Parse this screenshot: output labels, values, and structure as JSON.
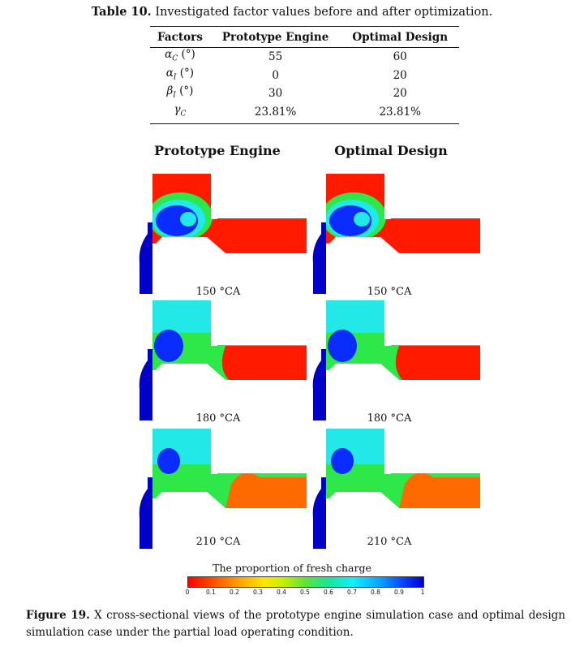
{
  "table": {
    "caption_label": "Table 10.",
    "caption_text": " Investigated factor values before and after optimization.",
    "headers": [
      "Factors",
      "Prototype Engine",
      "Optimal Design"
    ],
    "rows": [
      {
        "factor_sym": "α",
        "factor_sub": "C",
        "factor_unit": " (°)",
        "prototype": "55",
        "optimal": "60"
      },
      {
        "factor_sym": "α",
        "factor_sub": "I",
        "factor_unit": " (°)",
        "prototype": "0",
        "optimal": "20"
      },
      {
        "factor_sym": "β",
        "factor_sub": "I",
        "factor_unit": " (°)",
        "prototype": "30",
        "optimal": "20"
      },
      {
        "factor_sym": "γ",
        "factor_sub": "C",
        "factor_unit": "",
        "prototype": "23.81%",
        "optimal": "23.81%"
      }
    ]
  },
  "figure": {
    "column_titles": [
      "Prototype Engine",
      "Optimal Design"
    ],
    "crank_angles": [
      "150 °CA",
      "180 °CA",
      "210 °CA"
    ],
    "colorbar_title": "The proportion of fresh charge",
    "colorbar_ticks": [
      "0",
      "0.1",
      "0.2",
      "0.3",
      "0.4",
      "0.5",
      "0.6",
      "0.7",
      "0.8",
      "0.9",
      "1"
    ],
    "caption_label": "Figure 19.",
    "caption_text": "  X cross-sectional views of the prototype engine simulation case and optimal design simulation case under the partial load operating condition."
  },
  "colors": {
    "red": "#ff1a00",
    "orange": "#ff6a00",
    "green": "#2ee84a",
    "cyan": "#22e8e8",
    "blue": "#0a2cff",
    "deep_blue": "#0000c8"
  }
}
